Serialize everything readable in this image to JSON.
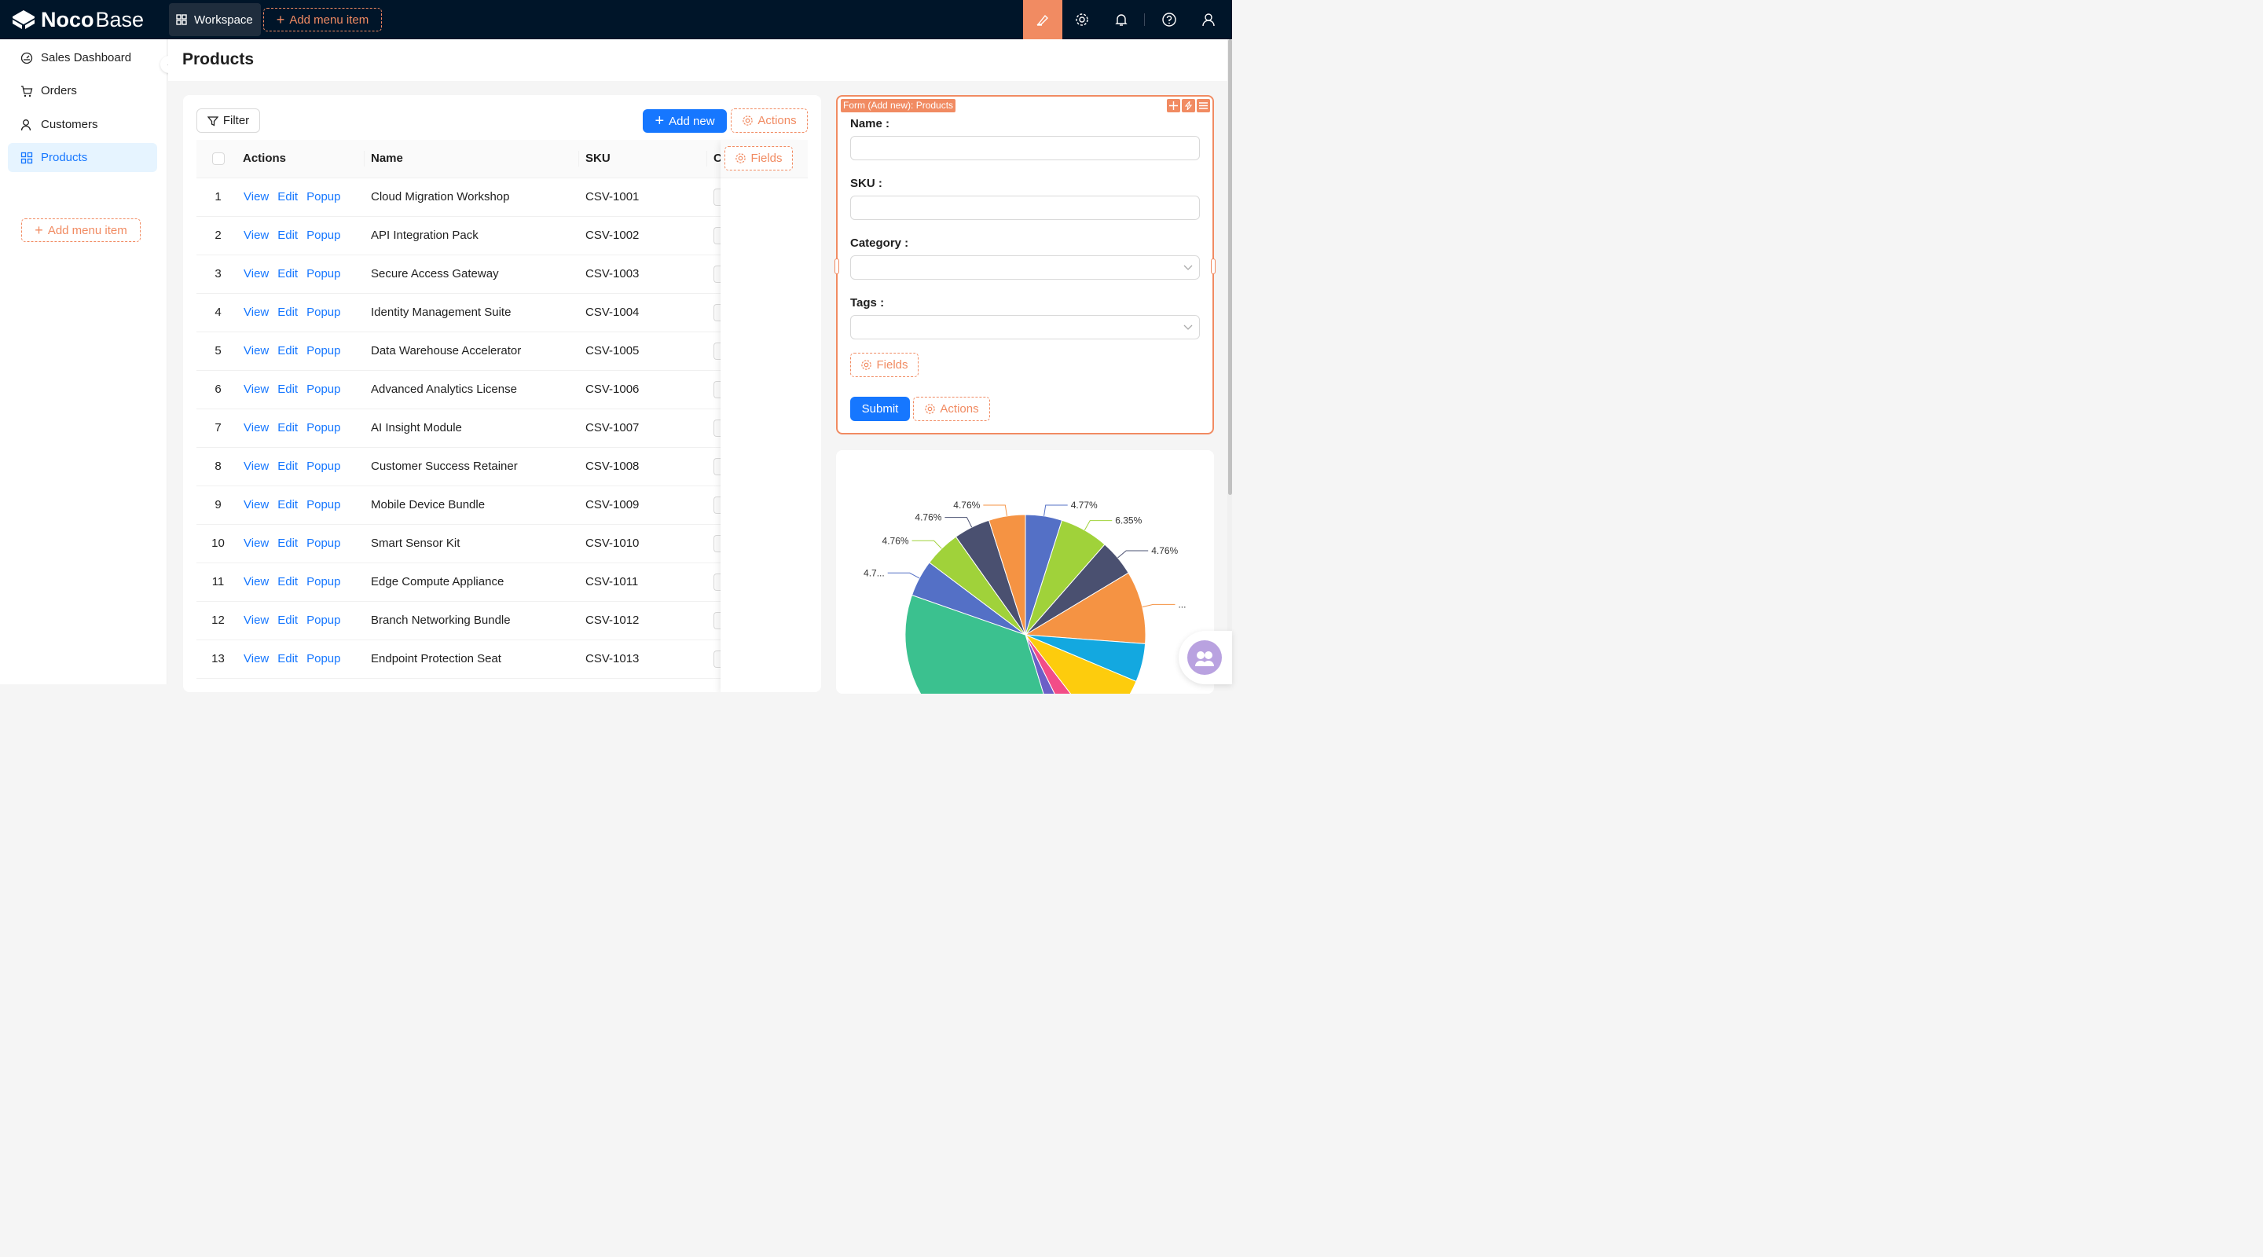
{
  "app": {
    "brand_bold": "Noco",
    "brand_light": "Base"
  },
  "topbar": {
    "workspace_label": "Workspace",
    "add_menu_label": "Add menu item"
  },
  "sidebar": {
    "items": [
      {
        "label": "Sales Dashboard",
        "icon": "dashboard-icon"
      },
      {
        "label": "Orders",
        "icon": "cart-icon"
      },
      {
        "label": "Customers",
        "icon": "user-icon"
      },
      {
        "label": "Products",
        "icon": "appstore-icon",
        "active": true
      }
    ],
    "add_menu_label": "Add menu item"
  },
  "page": {
    "title": "Products"
  },
  "table": {
    "filter_label": "Filter",
    "add_new_label": "Add new",
    "actions_label": "Actions",
    "fields_label": "Fields",
    "columns": {
      "actions": "Actions",
      "name": "Name",
      "sku": "SKU",
      "category": "C"
    },
    "row_actions": [
      "View",
      "Edit",
      "Popup"
    ],
    "rows": [
      {
        "index": "1",
        "name": "Cloud Migration Workshop",
        "sku": "CSV-1001"
      },
      {
        "index": "2",
        "name": "API Integration Pack",
        "sku": "CSV-1002"
      },
      {
        "index": "3",
        "name": "Secure Access Gateway",
        "sku": "CSV-1003"
      },
      {
        "index": "4",
        "name": "Identity Management Suite",
        "sku": "CSV-1004"
      },
      {
        "index": "5",
        "name": "Data Warehouse Accelerator",
        "sku": "CSV-1005"
      },
      {
        "index": "6",
        "name": "Advanced Analytics License",
        "sku": "CSV-1006"
      },
      {
        "index": "7",
        "name": "AI Insight Module",
        "sku": "CSV-1007"
      },
      {
        "index": "8",
        "name": "Customer Success Retainer",
        "sku": "CSV-1008"
      },
      {
        "index": "9",
        "name": "Mobile Device Bundle",
        "sku": "CSV-1009"
      },
      {
        "index": "10",
        "name": "Smart Sensor Kit",
        "sku": "CSV-1010"
      },
      {
        "index": "11",
        "name": "Edge Compute Appliance",
        "sku": "CSV-1011"
      },
      {
        "index": "12",
        "name": "Branch Networking Bundle",
        "sku": "CSV-1012"
      },
      {
        "index": "13",
        "name": "Endpoint Protection Seat",
        "sku": "CSV-1013"
      }
    ]
  },
  "form": {
    "badge": "Form (Add new): Products",
    "fields": [
      {
        "label": "Name :",
        "type": "input"
      },
      {
        "label": "SKU :",
        "type": "input"
      },
      {
        "label": "Category :",
        "type": "select"
      },
      {
        "label": "Tags :",
        "type": "select"
      }
    ],
    "fields_label": "Fields",
    "submit_label": "Submit",
    "actions_label": "Actions"
  },
  "colors": {
    "accent": "#1677ff",
    "design_orange": "#f18b62",
    "topbar": "#001529"
  },
  "chart_data": {
    "type": "pie",
    "title": "",
    "slice_labels": [
      "4.77%",
      "6.35%",
      "4.76%",
      "...",
      "4.7...",
      "4.76%",
      "4.76%",
      "4.76%"
    ],
    "slices": [
      {
        "label": "4.77%",
        "value": 4.77,
        "color": "#5470c6"
      },
      {
        "label": "6.35%",
        "value": 6.35,
        "color": "#a0d23a"
      },
      {
        "label": "4.76%",
        "value": 4.76,
        "color": "#4a5070"
      },
      {
        "label": "...",
        "value": 9.5,
        "color": "#f59343"
      },
      {
        "label": "",
        "value": 5.0,
        "color": "#13a8e0"
      },
      {
        "label": "",
        "value": 8.0,
        "color": "#fdcc0d"
      },
      {
        "label": "",
        "value": 3.0,
        "color": "#f24d88"
      },
      {
        "label": "",
        "value": 2.5,
        "color": "#6b5fc7"
      },
      {
        "label": "",
        "value": 34.0,
        "color": "#3bc18f"
      },
      {
        "label": "4.7...",
        "value": 4.76,
        "color": "#5470c6"
      },
      {
        "label": "4.76%",
        "value": 4.76,
        "color": "#a0d23a"
      },
      {
        "label": "4.76%",
        "value": 4.76,
        "color": "#4a5070"
      },
      {
        "label": "4.76%",
        "value": 4.76,
        "color": "#f59343"
      }
    ]
  }
}
